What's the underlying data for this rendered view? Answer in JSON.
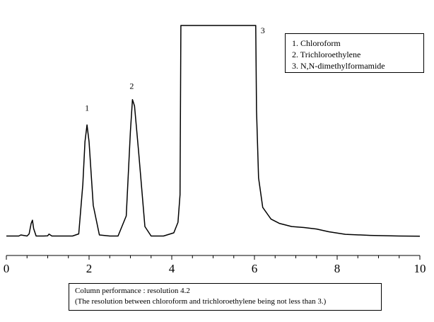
{
  "chart_data": {
    "type": "line",
    "title": "",
    "xlabel": "",
    "ylabel": "",
    "xlim": [
      0,
      10
    ],
    "ylim": [
      0,
      100
    ],
    "xticks": [
      0,
      2,
      4,
      6,
      8,
      10
    ],
    "x": [
      0.0,
      0.3,
      0.35,
      0.5,
      0.55,
      0.6,
      0.63,
      0.66,
      0.72,
      0.9,
      1.0,
      1.03,
      1.1,
      1.3,
      1.6,
      1.75,
      1.85,
      1.9,
      1.95,
      2.0,
      2.1,
      2.25,
      2.5,
      2.7,
      2.9,
      3.0,
      3.05,
      3.1,
      3.2,
      3.35,
      3.5,
      3.8,
      4.05,
      4.15,
      4.2,
      4.22,
      6.03,
      6.05,
      6.1,
      6.2,
      6.4,
      6.6,
      6.9,
      7.2,
      7.5,
      7.8,
      8.2,
      8.8,
      9.5,
      10.0
    ],
    "y": [
      0.5,
      0.5,
      1.0,
      0.5,
      1.5,
      6.5,
      8.0,
      4.0,
      0.5,
      0.5,
      0.6,
      1.4,
      0.5,
      0.5,
      0.5,
      1.5,
      25.0,
      45.0,
      53.0,
      45.0,
      15.0,
      1.0,
      0.5,
      0.5,
      10.0,
      50.0,
      65.0,
      62.0,
      40.0,
      5.0,
      0.5,
      0.5,
      2.0,
      7.0,
      20.0,
      100.0,
      100.0,
      60.0,
      28.0,
      14.0,
      8.5,
      6.5,
      5.0,
      4.5,
      3.8,
      2.5,
      1.3,
      0.8,
      0.5,
      0.4
    ],
    "peaks": [
      {
        "label": "1",
        "x": 1.95,
        "y": 53
      },
      {
        "label": "2",
        "x": 3.05,
        "y": 65
      },
      {
        "label": "3",
        "x": 6.2,
        "y": 100
      }
    ],
    "legend": [
      "1. Chloroform",
      "2. Trichloroethylene",
      "3. N,N-dimethylformamide"
    ],
    "grid": false
  },
  "note": {
    "line1": "Column performance : resolution 4.2",
    "line2": "(The resolution between chloroform and trichloroethylene being not less than 3.)"
  }
}
